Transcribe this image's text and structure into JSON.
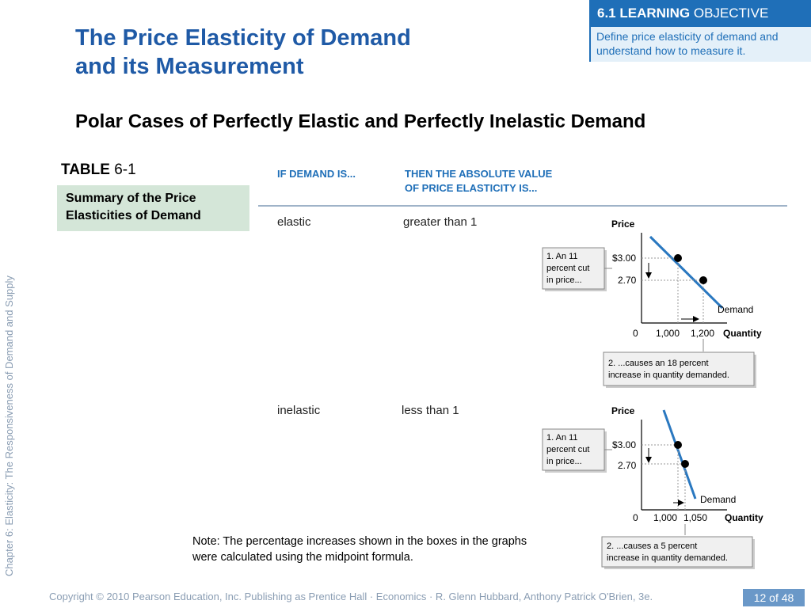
{
  "slide": {
    "title_line1": "The Price Elasticity of Demand",
    "title_line2": "and its Measurement",
    "subtitle": "Polar Cases of Perfectly Elastic and Perfectly Inelastic Demand"
  },
  "objective": {
    "heading_bold": "6.1 LEARNING",
    "heading_regular": "OBJECTIVE",
    "description": "Define price elasticity of demand and understand how to measure it."
  },
  "table": {
    "label_prefix": "TABLE",
    "label_number": "6-1",
    "caption": "Summary of the Price Elasticities of Demand",
    "headers": {
      "col1": "IF DEMAND IS...",
      "col2_line1": "THEN THE ABSOLUTE VALUE",
      "col2_line2": "OF PRICE ELASTICITY IS..."
    },
    "rows": [
      {
        "demand": "elastic",
        "elasticity": "greater than 1",
        "graph": {
          "price_label": "Price",
          "quantity_label": "Quantity",
          "price_high": "$3.00",
          "price_low": "2.70",
          "origin": "0",
          "q1": "1,000",
          "q2": "1,200",
          "curve_label": "Demand",
          "callout_price_line1": "1. An 11",
          "callout_price_line2": "percent cut",
          "callout_price_line3": "in price...",
          "callout_qty_line1": "2. ...causes an 18 percent",
          "callout_qty_line2": "increase in quantity demanded."
        }
      },
      {
        "demand": "inelastic",
        "elasticity": "less than 1",
        "graph": {
          "price_label": "Price",
          "quantity_label": "Quantity",
          "price_high": "$3.00",
          "price_low": "2.70",
          "origin": "0",
          "q1": "1,000",
          "q2": "1,050",
          "curve_label": "Demand",
          "callout_price_line1": "1. An 11",
          "callout_price_line2": "percent cut",
          "callout_price_line3": "in price...",
          "callout_qty_line1": "2. ...causes a 5 percent",
          "callout_qty_line2": "increase in quantity demanded."
        }
      }
    ],
    "note": "Note: The percentage increases shown in the boxes in the graphs were calculated using the midpoint formula."
  },
  "sidebar": {
    "chapter_text": "Chapter 6:  Elasticity:  The Responsiveness of Demand and Supply"
  },
  "footer": {
    "copyright": "Copyright © 2010 Pearson Education, Inc. Publishing as Prentice Hall · Economics · R. Glenn Hubbard, Anthony Patrick O'Brien, 3e.",
    "page_current": "12",
    "page_of": "of",
    "page_total": "48"
  },
  "colors": {
    "title_blue": "#1f5aa6",
    "accent_blue": "#1f6fb8",
    "caption_green": "#d4e6d8",
    "demand_curve": "#2a78c0",
    "muted_gray": "#8a9db3"
  }
}
